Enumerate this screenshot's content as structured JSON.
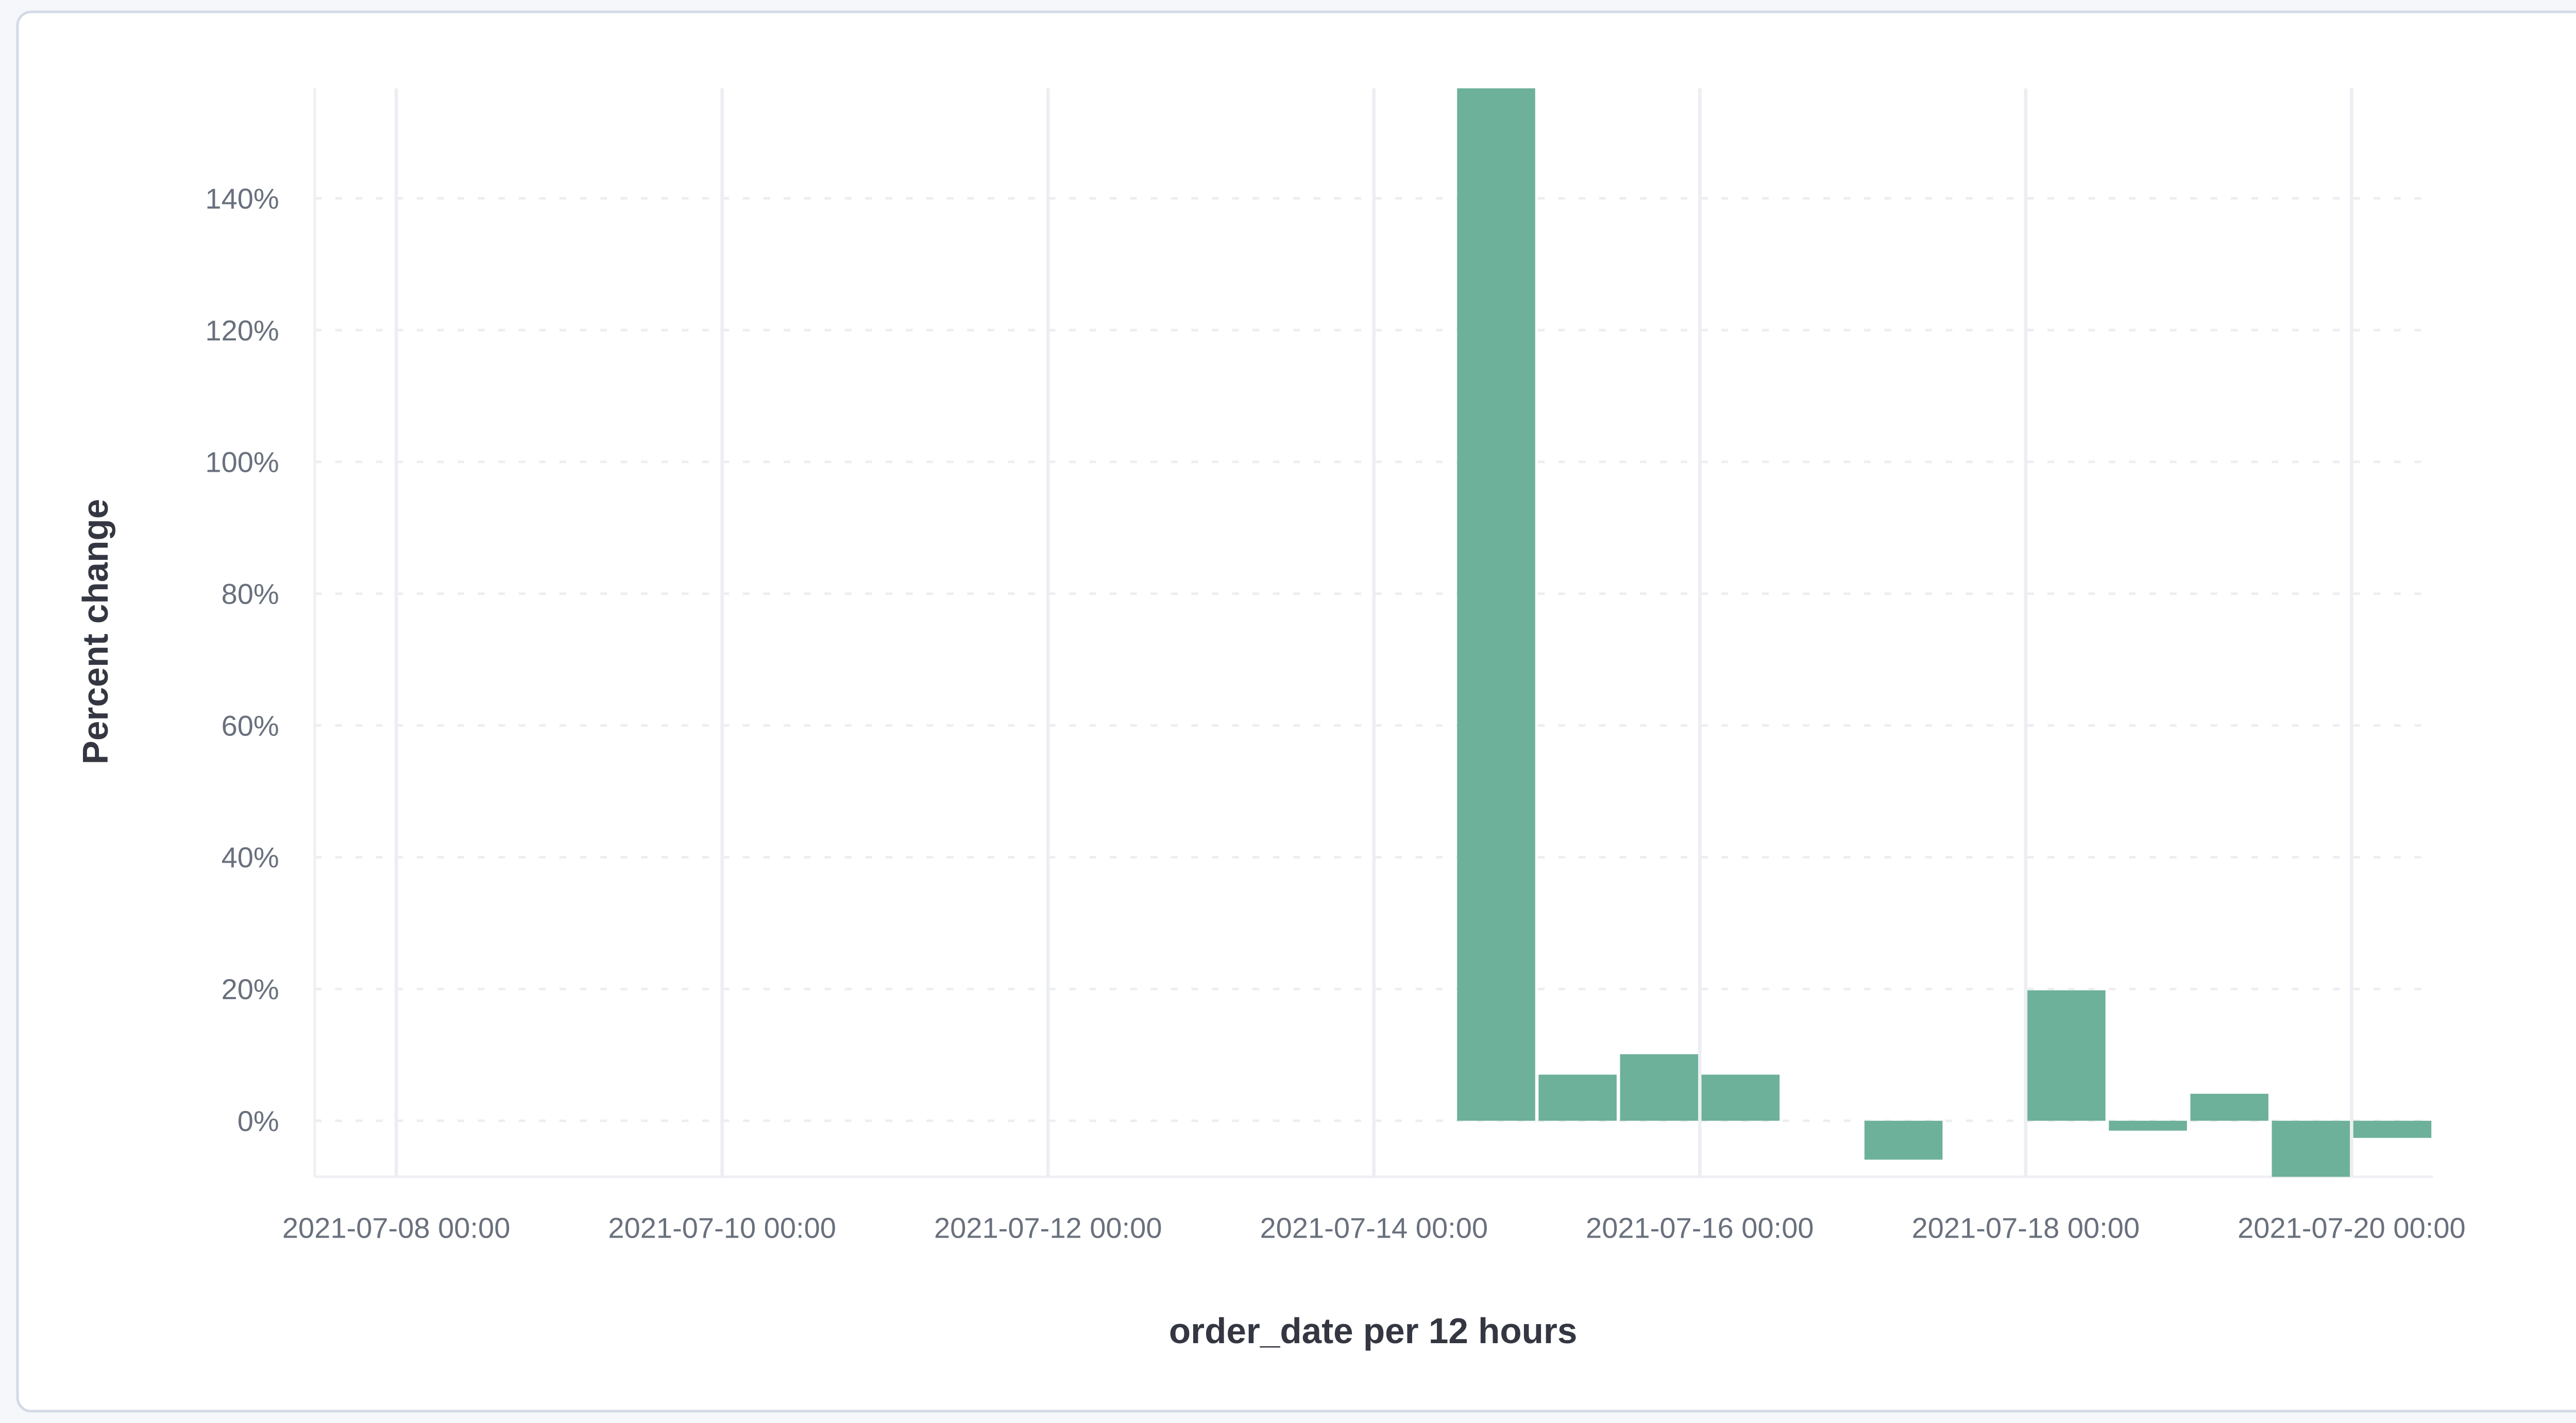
{
  "chart_data": {
    "type": "bar",
    "title": "",
    "xlabel": "order_date per 12 hours",
    "ylabel": "Percent change",
    "x_type": "time",
    "xlim": [
      "2021-07-07 12:00",
      "2021-07-20 12:00"
    ],
    "ylim": [
      -8.5,
      156.7
    ],
    "y_unit": "%",
    "grid": {
      "x": true,
      "y": true
    },
    "bar_color": "#6db19a",
    "x_ticks": [
      "2021-07-08 00:00",
      "2021-07-10 00:00",
      "2021-07-12 00:00",
      "2021-07-14 00:00",
      "2021-07-16 00:00",
      "2021-07-18 00:00",
      "2021-07-20 00:00"
    ],
    "y_ticks": [
      0,
      20,
      40,
      60,
      80,
      100,
      120,
      140
    ],
    "y_tick_labels": [
      "0%",
      "20%",
      "40%",
      "60%",
      "80%",
      "100%",
      "120%",
      "140%"
    ],
    "bars": [
      {
        "x": "2021-07-14 12:00",
        "value": 156.7
      },
      {
        "x": "2021-07-15 00:00",
        "value": 7.0
      },
      {
        "x": "2021-07-15 12:00",
        "value": 10.1
      },
      {
        "x": "2021-07-16 00:00",
        "value": 7.0
      },
      {
        "x": "2021-07-17 00:00",
        "value": -5.9
      },
      {
        "x": "2021-07-18 00:00",
        "value": 19.8
      },
      {
        "x": "2021-07-18 12:00",
        "value": -1.5
      },
      {
        "x": "2021-07-19 00:00",
        "value": 4.1
      },
      {
        "x": "2021-07-19 12:00",
        "value": -8.5
      },
      {
        "x": "2021-07-20 00:00",
        "value": -2.6
      }
    ]
  }
}
